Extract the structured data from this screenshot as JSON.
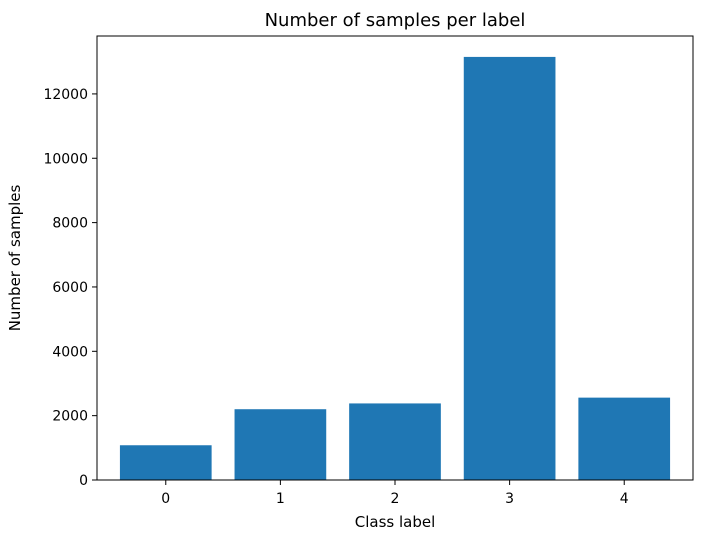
{
  "chart_data": {
    "type": "bar",
    "title": "Number of samples per label",
    "xlabel": "Class label",
    "ylabel": "Number of samples",
    "categories": [
      "0",
      "1",
      "2",
      "3",
      "4"
    ],
    "values": [
      1080,
      2200,
      2380,
      13150,
      2560
    ],
    "ylim": [
      0,
      13800
    ],
    "yticks": [
      0,
      2000,
      4000,
      6000,
      8000,
      10000,
      12000
    ],
    "yticks_labels": [
      "0",
      "2000",
      "4000",
      "6000",
      "8000",
      "10000",
      "12000"
    ],
    "bar_color": "#1f77b4",
    "grid": false,
    "legend": "none"
  }
}
